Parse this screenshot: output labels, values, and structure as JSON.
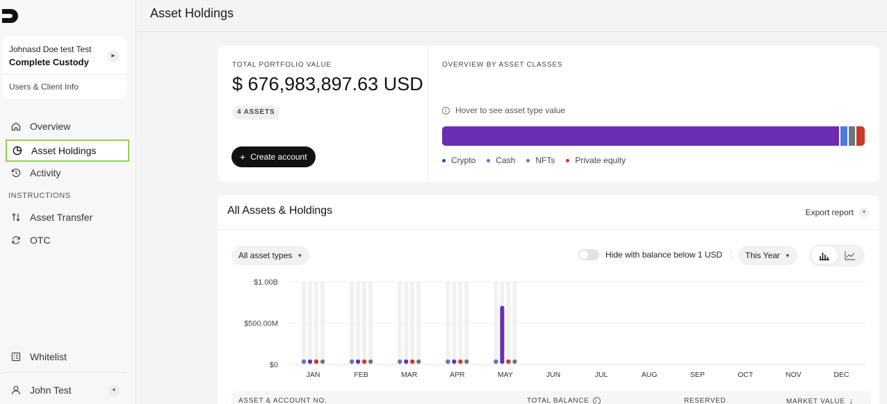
{
  "sidebar": {
    "client": {
      "name": "Johnasd Doe test Test",
      "org": "Complete Custody",
      "link": "Users & Client Info"
    },
    "nav": [
      {
        "label": "Overview",
        "icon": "home-icon"
      },
      {
        "label": "Asset Holdings",
        "icon": "pie-chart-icon",
        "active": true
      },
      {
        "label": "Activity",
        "icon": "history-icon"
      }
    ],
    "section_label": "INSTRUCTIONS",
    "instructions": [
      {
        "label": "Asset Transfer",
        "icon": "transfer-arrows-icon"
      },
      {
        "label": "OTC",
        "icon": "refresh-icon"
      }
    ],
    "whitelist": "Whitelist",
    "user": "John Test"
  },
  "header": {
    "title": "Asset Holdings"
  },
  "portfolio": {
    "label": "TOTAL PORTFOLIO VALUE",
    "value": "$ 676,983,897.63 USD",
    "assets_badge": "4 ASSETS",
    "create_button": "Create account"
  },
  "overview": {
    "label": "OVERVIEW BY ASSET CLASSES",
    "hint": "Hover to see asset type value",
    "allocation": [
      {
        "name": "Crypto",
        "share": 0.943,
        "color": "#6c2db5"
      },
      {
        "name": "Cash",
        "share": 0.019,
        "color": "#4a7bd8"
      },
      {
        "name": "NFTs",
        "share": 0.019,
        "color": "#6f7480"
      },
      {
        "name": "Private equity",
        "share": 0.019,
        "color": "#c93a24"
      }
    ]
  },
  "holdings": {
    "title": "All Assets & Holdings",
    "export_label": "Export report",
    "filter_label": "All asset types",
    "toggle_label": "Hide with balance below 1 USD",
    "period_label": "This Year",
    "table_headers": [
      "ASSET & ACCOUNT NO.",
      "TOTAL BALANCE",
      "RESERVED",
      "MARKET VALUE"
    ]
  },
  "chart_data": {
    "type": "bar",
    "categories": [
      "JAN",
      "FEB",
      "MAR",
      "APR",
      "MAY",
      "JUN",
      "JUL",
      "AUG",
      "SEP",
      "OCT",
      "NOV",
      "DEC"
    ],
    "y_ticks": [
      "$1.00B",
      "$500.00M",
      "$0"
    ],
    "ylim": [
      0,
      1000000000
    ],
    "series": [
      {
        "name": "Cash",
        "color": "#4a7bd8",
        "values": [
          0,
          0,
          0,
          0,
          0,
          null,
          null,
          null,
          null,
          null,
          null,
          null
        ]
      },
      {
        "name": "Crypto",
        "color": "#6c2db5",
        "values": [
          0,
          0,
          0,
          0,
          676983897.63,
          null,
          null,
          null,
          null,
          null,
          null,
          null
        ]
      },
      {
        "name": "Private equity",
        "color": "#c93a24",
        "values": [
          0,
          0,
          0,
          0,
          0,
          null,
          null,
          null,
          null,
          null,
          null,
          null
        ]
      },
      {
        "name": "NFTs",
        "color": "#6f7480",
        "values": [
          0,
          0,
          0,
          0,
          0,
          null,
          null,
          null,
          null,
          null,
          null,
          null
        ]
      }
    ],
    "grid": true
  }
}
